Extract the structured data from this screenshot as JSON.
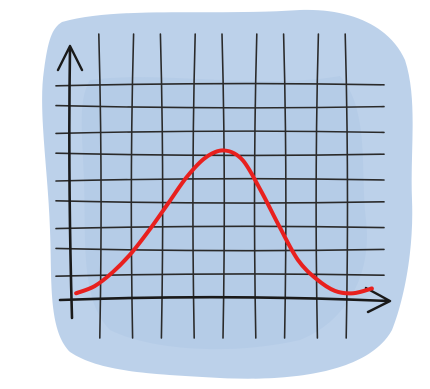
{
  "chart_data": {
    "type": "line",
    "title": "",
    "xlabel": "",
    "ylabel": "",
    "grid": true,
    "colors": {
      "paper": "#ffffff",
      "wash": "#bcd1ea",
      "wash_dark": "#a9c3e3",
      "grid": "#2a2a2a",
      "axis": "#1a1a1a",
      "curve": "#e8201e"
    },
    "xlim": [
      0,
      10
    ],
    "ylim": [
      0,
      10
    ],
    "x_grid": [
      1,
      2,
      3,
      4,
      5,
      6,
      7,
      8,
      9
    ],
    "y_grid": [
      1,
      2,
      3,
      4,
      5,
      6,
      7,
      8,
      9
    ],
    "series": [
      {
        "x": [
          0.2,
          0.8,
          1.4,
          2.0,
          2.6,
          3.2,
          3.8,
          4.4,
          5.0,
          5.6,
          6.2,
          6.8,
          7.4,
          8.0,
          8.6,
          9.2,
          9.8
        ],
        "y": [
          0.2,
          0.5,
          1.1,
          1.9,
          2.9,
          4.0,
          5.1,
          5.9,
          6.2,
          5.8,
          4.5,
          3.0,
          1.6,
          0.8,
          0.3,
          0.2,
          0.4
        ]
      }
    ]
  }
}
